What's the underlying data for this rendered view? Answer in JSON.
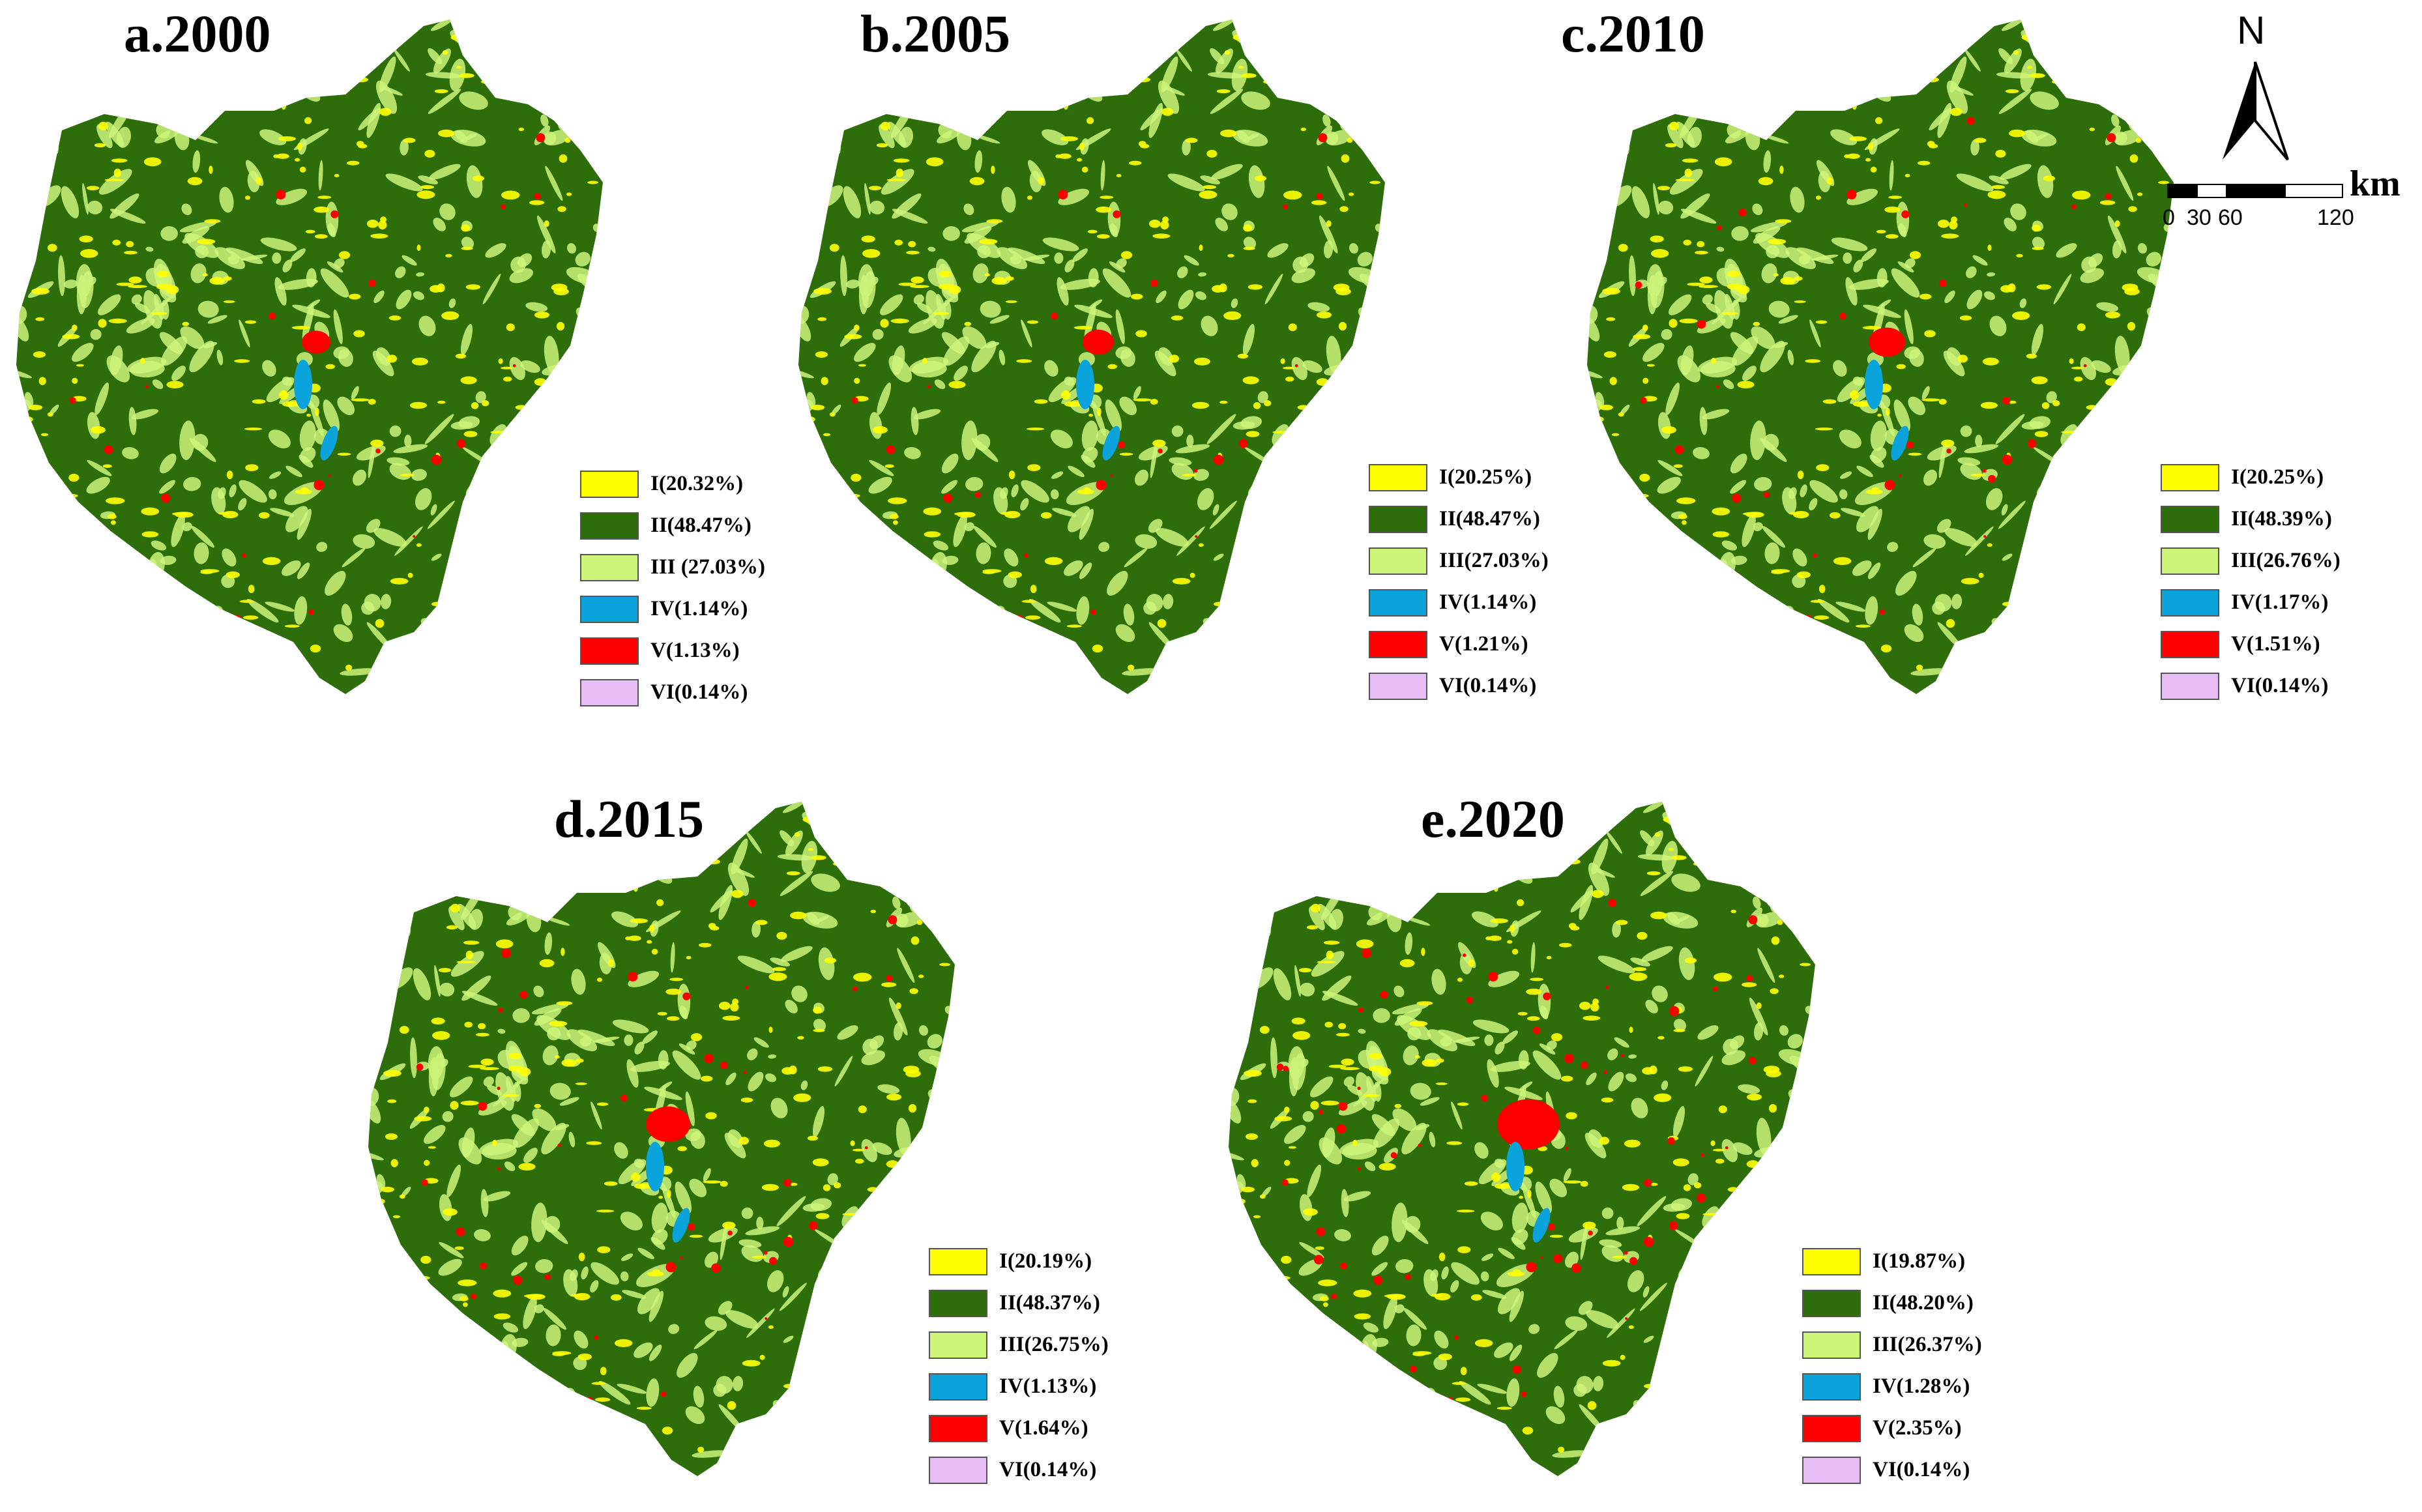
{
  "colors": {
    "I": "#ffff00",
    "II": "#2d6e0a",
    "III": "#ccf57a",
    "IV": "#0aa3dc",
    "V": "#ff0000",
    "VI": "#e6bef5"
  },
  "north_arrow": {
    "letter": "N"
  },
  "scale_bar": {
    "unit": "km",
    "ticks": [
      "0",
      "30",
      "60",
      "120"
    ]
  },
  "panels": [
    {
      "title": "a.2000",
      "legend": [
        "I(20.32%)",
        "II(48.47%)",
        "III (27.03%)",
        "IV(1.14%)",
        "V(1.13%)",
        "VI(0.14%)"
      ]
    },
    {
      "title": "b.2005",
      "legend": [
        "I(20.25%)",
        "II(48.47%)",
        "III(27.03%)",
        "IV(1.14%)",
        "V(1.21%)",
        "VI(0.14%)"
      ]
    },
    {
      "title": "c.2010",
      "legend": [
        "I(20.25%)",
        "II(48.39%)",
        "III(26.76%)",
        "IV(1.17%)",
        "V(1.51%)",
        "VI(0.14%)"
      ]
    },
    {
      "title": "d.2015",
      "legend": [
        "I(20.19%)",
        "II(48.37%)",
        "III(26.75%)",
        "IV(1.13%)",
        "V(1.64%)",
        "VI(0.14%)"
      ]
    },
    {
      "title": "e.2020",
      "legend": [
        "I(19.87%)",
        "II(48.20%)",
        "III(26.37%)",
        "IV(1.28%)",
        "V(2.35%)",
        "VI(0.14%)"
      ]
    }
  ]
}
